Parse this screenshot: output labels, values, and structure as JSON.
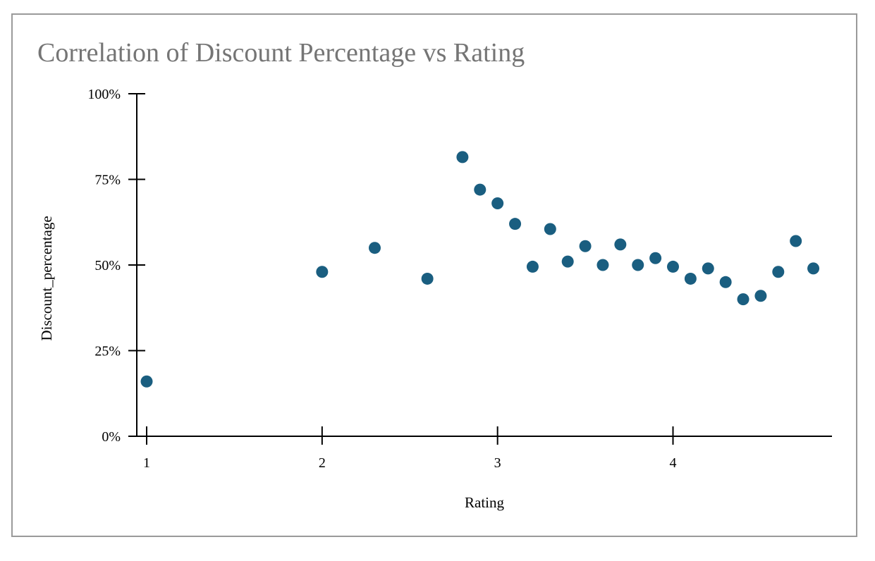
{
  "chart_data": {
    "type": "scatter",
    "title": "Correlation of Discount Percentage vs Rating",
    "xlabel": "Rating",
    "ylabel": "Discount_percentage",
    "xlim": [
      1,
      4.85
    ],
    "ylim": [
      0,
      100
    ],
    "x_ticks": [
      1,
      2,
      3,
      4
    ],
    "x_tick_labels": [
      "1",
      "2",
      "3",
      "4"
    ],
    "y_ticks": [
      0,
      25,
      50,
      75,
      100
    ],
    "y_tick_labels": [
      "0%",
      "25%",
      "50%",
      "75%",
      "100%"
    ],
    "grid": false,
    "marker_color": "#1a5e80",
    "points": [
      {
        "x": 1.0,
        "y": 16
      },
      {
        "x": 2.0,
        "y": 48
      },
      {
        "x": 2.3,
        "y": 55
      },
      {
        "x": 2.6,
        "y": 46
      },
      {
        "x": 2.8,
        "y": 81.5
      },
      {
        "x": 2.9,
        "y": 72
      },
      {
        "x": 3.0,
        "y": 68
      },
      {
        "x": 3.1,
        "y": 62
      },
      {
        "x": 3.2,
        "y": 49.5
      },
      {
        "x": 3.3,
        "y": 60.5
      },
      {
        "x": 3.4,
        "y": 51
      },
      {
        "x": 3.5,
        "y": 55.5
      },
      {
        "x": 3.6,
        "y": 50
      },
      {
        "x": 3.7,
        "y": 56
      },
      {
        "x": 3.8,
        "y": 50
      },
      {
        "x": 3.9,
        "y": 52
      },
      {
        "x": 4.0,
        "y": 49.5
      },
      {
        "x": 4.1,
        "y": 46
      },
      {
        "x": 4.2,
        "y": 49
      },
      {
        "x": 4.3,
        "y": 45
      },
      {
        "x": 4.4,
        "y": 40
      },
      {
        "x": 4.5,
        "y": 41
      },
      {
        "x": 4.6,
        "y": 48
      },
      {
        "x": 4.7,
        "y": 57
      },
      {
        "x": 4.8,
        "y": 49
      }
    ]
  }
}
